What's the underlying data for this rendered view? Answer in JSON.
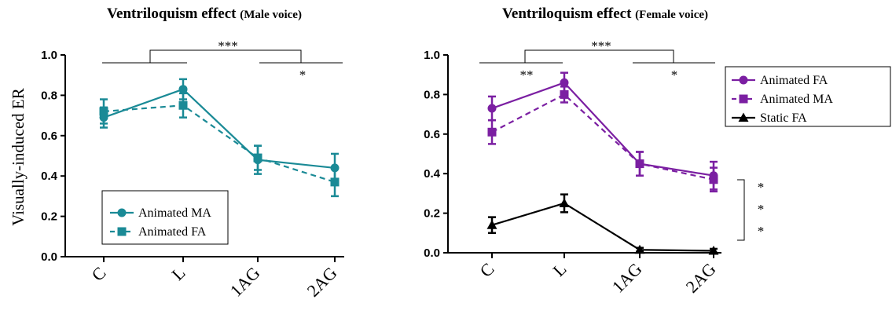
{
  "chart_data": [
    {
      "type": "line",
      "title": "Ventriloquism effect",
      "subtitle": "(Male voice)",
      "xlabel": "",
      "ylabel": "Visually-induced ER",
      "categories": [
        "C",
        "L",
        "1AG",
        "2AG"
      ],
      "ylim": [
        0.0,
        1.0
      ],
      "yticks": [
        "0.0",
        "0.2",
        "0.4",
        "0.6",
        "0.8",
        "1.0"
      ],
      "grid": false,
      "legend_position": "bottom-left",
      "series": [
        {
          "name": "Animated MA",
          "values": [
            0.69,
            0.83,
            0.48,
            0.44
          ],
          "errors": [
            0.05,
            0.05,
            0.07,
            0.07
          ],
          "color": "#1a8a96",
          "marker": "circle",
          "dash": "solid"
        },
        {
          "name": "Animated FA",
          "values": [
            0.72,
            0.75,
            0.49,
            0.37
          ],
          "errors": [
            0.06,
            0.06,
            0.06,
            0.07
          ],
          "color": "#1a8a96",
          "marker": "square",
          "dash": "dashed"
        }
      ],
      "significance": [
        {
          "label": "***"
        },
        {
          "label": "*"
        }
      ]
    },
    {
      "type": "line",
      "title": "Ventriloquism effect",
      "subtitle": "(Female voice)",
      "xlabel": "",
      "ylabel": "",
      "categories": [
        "C",
        "L",
        "1AG",
        "2AG"
      ],
      "ylim": [
        0.0,
        1.0
      ],
      "yticks": [
        "0.0",
        "0.2",
        "0.4",
        "0.6",
        "0.8",
        "1.0"
      ],
      "grid": false,
      "legend_position": "top-right",
      "series": [
        {
          "name": "Animated FA",
          "values": [
            0.73,
            0.86,
            0.45,
            0.39
          ],
          "errors": [
            0.06,
            0.05,
            0.06,
            0.07
          ],
          "color": "#7b1fa2",
          "marker": "circle",
          "dash": "solid"
        },
        {
          "name": "Animated MA",
          "values": [
            0.61,
            0.8,
            0.45,
            0.37
          ],
          "errors": [
            0.06,
            0.04,
            0.06,
            0.06
          ],
          "color": "#7b1fa2",
          "marker": "square",
          "dash": "dashed"
        },
        {
          "name": "Static FA",
          "values": [
            0.14,
            0.25,
            0.015,
            0.01
          ],
          "errors": [
            0.04,
            0.045,
            0.01,
            0.01
          ],
          "color": "#000000",
          "marker": "triangle",
          "dash": "solid"
        }
      ],
      "significance": [
        {
          "label": "***"
        },
        {
          "label": "**"
        },
        {
          "label": "*"
        },
        {
          "label": "* * *"
        }
      ]
    }
  ]
}
